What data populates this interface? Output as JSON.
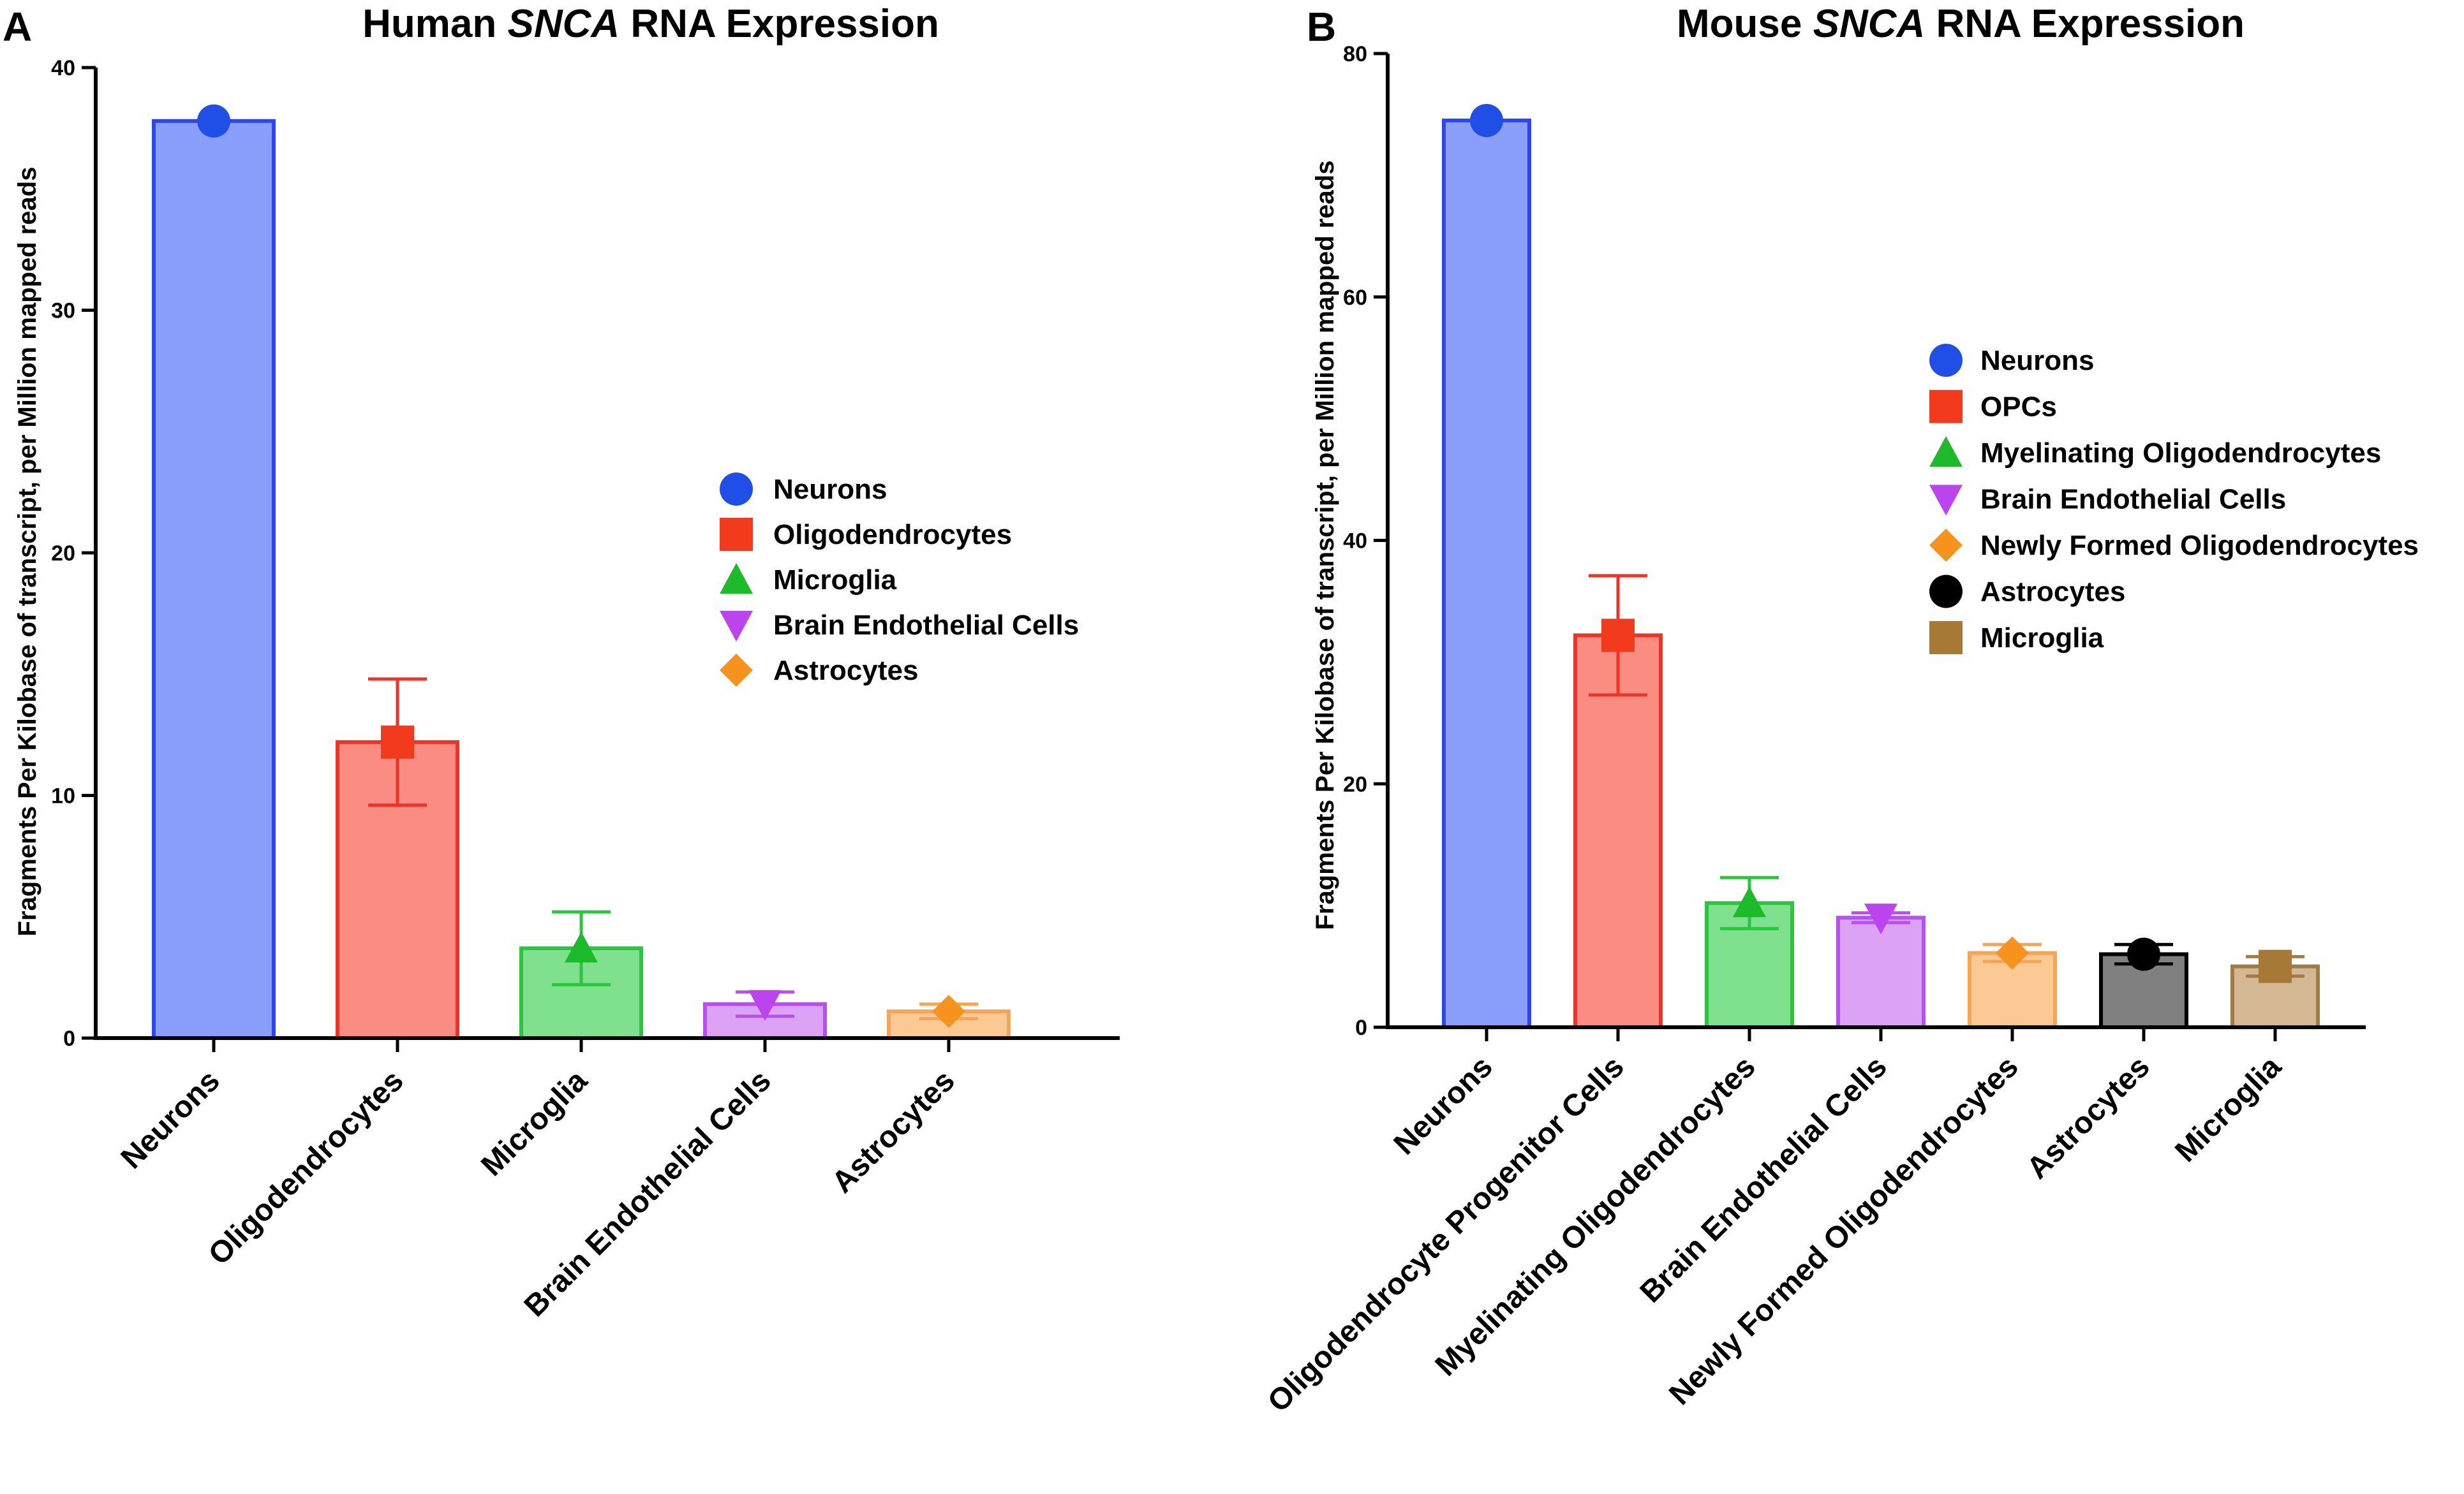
{
  "chart_data": [
    {
      "panel": "A",
      "type": "bar",
      "title_pre": "Human ",
      "title_gene": "SNCA",
      "title_post": " RNA Expression",
      "xlabel": "",
      "ylabel": "Fragments Per Kilobase of transcript, per Million mapped reads",
      "ylim": [
        0,
        40
      ],
      "yticks": [
        0,
        10,
        20,
        30,
        40
      ],
      "categories": [
        "Neurons",
        "Oligodendrocytes",
        "Microglia",
        "Brain Endothelial Cells",
        "Astrocytes"
      ],
      "values": [
        37.8,
        12.2,
        3.7,
        1.4,
        1.1
      ],
      "errors": [
        0,
        2.6,
        1.5,
        0.5,
        0.3
      ],
      "legend": [
        "Neurons",
        "Oligodendrocytes",
        "Microglia",
        "Brain Endothelial Cells",
        "Astrocytes"
      ],
      "legend_position": "right",
      "markers": [
        "circle",
        "square",
        "triangle-up",
        "triangle-down",
        "diamond"
      ],
      "fill_colors": [
        "#8a9ffb",
        "#fb8c82",
        "#7fe08e",
        "#dca2f6",
        "#fcc894"
      ],
      "edge_colors": [
        "#2e46ee",
        "#ee3427",
        "#2dc43f",
        "#b650f0",
        "#f7a553"
      ],
      "marker_colors": [
        "#1f4fe6",
        "#f23a1c",
        "#1dbb2a",
        "#bb44ee",
        "#f6921e"
      ]
    },
    {
      "panel": "B",
      "type": "bar",
      "title_pre": "Mouse ",
      "title_gene": "SNCA",
      "title_post": " RNA Expression",
      "xlabel": "",
      "ylabel": "Fragments Per Kilobase of transcript, per Million mapped reads",
      "ylim": [
        0,
        80
      ],
      "yticks": [
        0,
        20,
        40,
        60,
        80
      ],
      "categories": [
        "Neurons",
        "Oligodendrocyte Progenitor Cells",
        "Myelinating Oligodendrocytes",
        "Brain Endothelial Cells",
        "Newly Formed Oligodendrocytes",
        "Astrocytes",
        "Microglia"
      ],
      "values": [
        74.5,
        32.2,
        10.2,
        9.0,
        6.1,
        6.0,
        5.0
      ],
      "errors": [
        0,
        4.9,
        2.1,
        0.4,
        0.7,
        0.8,
        0.8
      ],
      "legend": [
        "Neurons",
        "OPCs",
        "Myelinating Oligodendrocytes",
        "Brain Endothelial Cells",
        "Newly Formed Oligodendrocytes",
        "Astrocytes",
        "Microglia"
      ],
      "legend_position": "right",
      "markers": [
        "circle",
        "square",
        "triangle-up",
        "triangle-down",
        "diamond",
        "circle",
        "square"
      ],
      "fill_colors": [
        "#8a9ffb",
        "#fb8c82",
        "#7fe08e",
        "#dca2f6",
        "#fcc894",
        "#808080",
        "#d4b894"
      ],
      "edge_colors": [
        "#2e46ee",
        "#ee3427",
        "#2dc43f",
        "#b650f0",
        "#f7a553",
        "#000000",
        "#a07c45"
      ],
      "marker_colors": [
        "#1f4fe6",
        "#f23a1c",
        "#1dbb2a",
        "#bb44ee",
        "#f6921e",
        "#000000",
        "#a67a36"
      ]
    }
  ]
}
